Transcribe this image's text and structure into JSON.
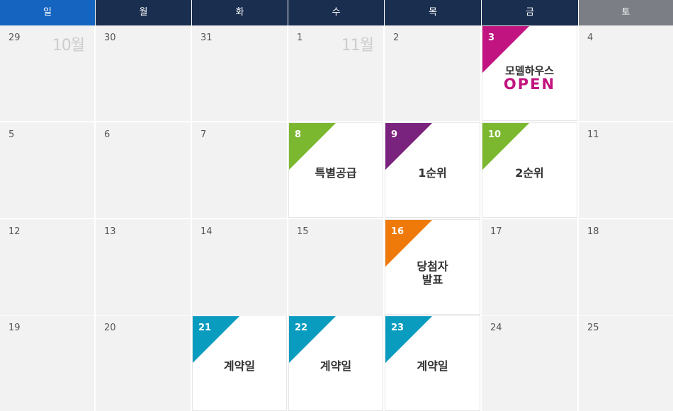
{
  "weekdays": [
    {
      "label": "일",
      "color": "#1565c0"
    },
    {
      "label": "월",
      "color": "#1a2e4f"
    },
    {
      "label": "화",
      "color": "#1a2e4f"
    },
    {
      "label": "수",
      "color": "#1a2e4f"
    },
    {
      "label": "목",
      "color": "#1a2e4f"
    },
    {
      "label": "금",
      "color": "#1a2e4f"
    },
    {
      "label": "토",
      "color": "#7b7f85"
    }
  ],
  "month_labels": {
    "october": "10월",
    "november": "11월"
  },
  "weeks": [
    [
      {
        "day": "29",
        "month_label": "10월"
      },
      {
        "day": "30"
      },
      {
        "day": "31"
      },
      {
        "day": "1",
        "month_label": "11월"
      },
      {
        "day": "2"
      },
      {
        "day": "3",
        "event": true,
        "tag_color": "#c21480",
        "line1": "모델하우스",
        "line2": "OPEN"
      },
      {
        "day": "4"
      }
    ],
    [
      {
        "day": "5"
      },
      {
        "day": "6"
      },
      {
        "day": "7"
      },
      {
        "day": "8",
        "event": true,
        "tag_color": "#7cb82f",
        "line1": "특별공급"
      },
      {
        "day": "9",
        "event": true,
        "tag_color": "#7a237e",
        "line1": "1순위"
      },
      {
        "day": "10",
        "event": true,
        "tag_color": "#7cb82f",
        "line1": "2순위"
      },
      {
        "day": "11"
      }
    ],
    [
      {
        "day": "12"
      },
      {
        "day": "13"
      },
      {
        "day": "14"
      },
      {
        "day": "15"
      },
      {
        "day": "16",
        "event": true,
        "tag_color": "#ef7a0a",
        "line1": "당첨자",
        "line1b": "발표"
      },
      {
        "day": "17"
      },
      {
        "day": "18"
      }
    ],
    [
      {
        "day": "19"
      },
      {
        "day": "20"
      },
      {
        "day": "21",
        "event": true,
        "tag_color": "#0a9cbf",
        "line1": "계약일"
      },
      {
        "day": "22",
        "event": true,
        "tag_color": "#0a9cbf",
        "line1": "계약일"
      },
      {
        "day": "23",
        "event": true,
        "tag_color": "#0a9cbf",
        "line1": "계약일"
      },
      {
        "day": "24"
      },
      {
        "day": "25"
      }
    ]
  ]
}
